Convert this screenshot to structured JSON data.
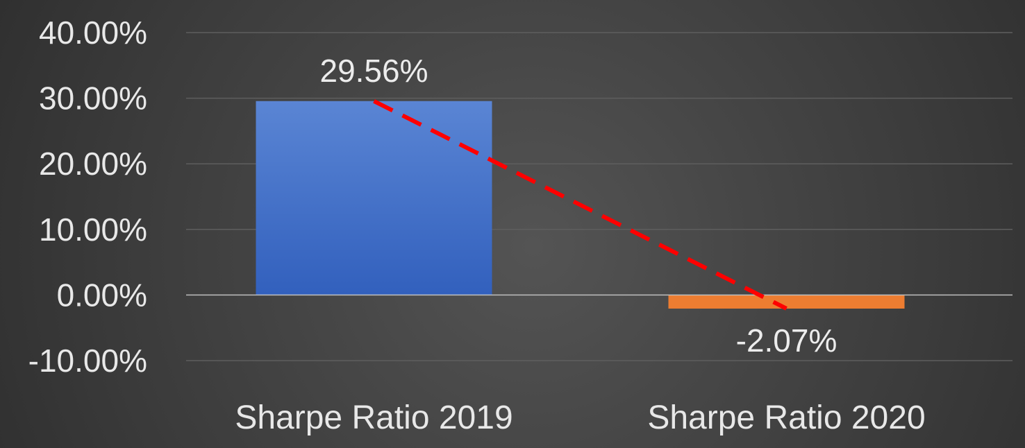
{
  "chart_data": {
    "type": "bar",
    "categories": [
      "Sharpe Ratio 2019",
      "Sharpe Ratio 2020"
    ],
    "values": [
      29.56,
      -2.07
    ],
    "data_labels": [
      "29.56%",
      "-2.07%"
    ],
    "bar_colors": [
      "#3f6dc9",
      "#ed7d31"
    ],
    "ylim": [
      -10,
      40
    ],
    "yticks": [
      40,
      30,
      20,
      10,
      0,
      -10
    ],
    "ytick_labels": [
      "40.00%",
      "30.00%",
      "20.00%",
      "10.00%",
      "0.00%",
      "-10.00%"
    ],
    "grid": true,
    "trend_line": {
      "style": "dashed",
      "color": "#ff0000",
      "from_value": 29.56,
      "to_value": -2.07
    },
    "title": "",
    "xlabel": "",
    "ylabel": ""
  },
  "colors": {
    "background": "#404040",
    "gridline": "#5e5e5e",
    "zero_line": "#bfbfbf",
    "text": "#e8e8e8"
  }
}
